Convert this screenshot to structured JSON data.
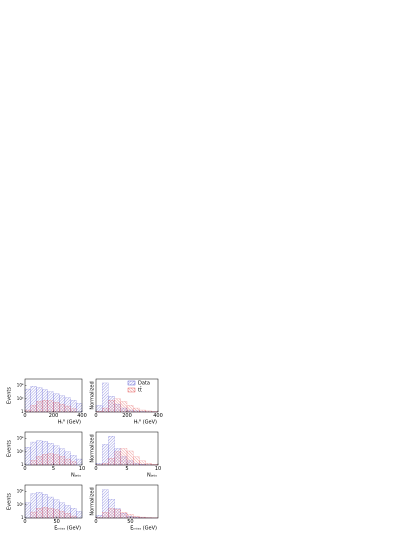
{
  "chart_data": [
    {
      "type": "histogram",
      "ylabel": "Events",
      "xlabel": "Hₜᴿ (GeV)",
      "log_y": true,
      "bins": [
        0,
        40,
        80,
        120,
        160,
        200,
        240,
        280,
        320,
        360,
        400
      ],
      "xlim": [
        0,
        400
      ],
      "xticks": [
        0,
        200,
        400
      ],
      "ylim": [
        1,
        100000
      ],
      "yticks": [
        1,
        {
          "value": 100,
          "label": "10²"
        },
        {
          "value": 10000,
          "label": "10⁴"
        }
      ],
      "series": [
        {
          "color": "#3a3ac8",
          "values": [
            3000,
            8000,
            5000,
            2500,
            1200,
            600,
            300,
            150,
            60,
            20
          ]
        },
        {
          "color": "#e03a3a",
          "values": [
            2,
            10,
            40,
            60,
            50,
            30,
            15,
            8,
            3,
            1
          ]
        }
      ]
    },
    {
      "type": "histogram",
      "ylabel": "Normalized",
      "xlabel": "Hₜᴿ (GeV)",
      "log_y": false,
      "legend": "upper right",
      "bins": [
        0,
        40,
        80,
        120,
        160,
        200,
        240,
        280,
        320,
        360,
        400
      ],
      "xlim": [
        0,
        400
      ],
      "xticks": [
        0,
        200,
        400
      ],
      "ylim": [
        0,
        0.25
      ],
      "series": [
        {
          "name": "Data",
          "color": "#3a3ac8",
          "values": [
            0.05,
            0.22,
            0.12,
            0.06,
            0.03,
            0.015,
            0.008,
            0.004,
            0.002,
            0.001
          ]
        },
        {
          "name": "tt̄",
          "color": "#e03a3a",
          "values": [
            0.005,
            0.03,
            0.09,
            0.1,
            0.08,
            0.05,
            0.03,
            0.015,
            0.008,
            0.004
          ]
        }
      ]
    },
    {
      "type": "histogram",
      "ylabel": "Events",
      "xlabel": "Nⱼₑₜₛ",
      "log_y": true,
      "bins": [
        0,
        1,
        2,
        3,
        4,
        5,
        6,
        7,
        8,
        9,
        10
      ],
      "xlim": [
        0,
        10
      ],
      "xticks": [
        0,
        5,
        10
      ],
      "ylim": [
        1,
        100000
      ],
      "yticks": [
        1,
        {
          "value": 100,
          "label": "10²"
        },
        {
          "value": 10000,
          "label": "10⁴"
        }
      ],
      "series": [
        {
          "color": "#3a3ac8",
          "values": [
            500,
            3000,
            5000,
            4000,
            2000,
            800,
            300,
            100,
            30,
            8
          ]
        },
        {
          "color": "#e03a3a",
          "values": [
            1,
            5,
            20,
            40,
            50,
            35,
            20,
            8,
            3,
            1
          ]
        }
      ]
    },
    {
      "type": "histogram",
      "ylabel": "Normalized",
      "xlabel": "Nⱼₑₜₛ",
      "log_y": false,
      "bins": [
        0,
        1,
        2,
        3,
        4,
        5,
        6,
        7,
        8,
        9,
        10
      ],
      "xlim": [
        0,
        10
      ],
      "xticks": [
        0,
        5,
        10
      ],
      "ylim": [
        0,
        0.4
      ],
      "series": [
        {
          "color": "#3a3ac8",
          "values": [
            0.02,
            0.25,
            0.35,
            0.2,
            0.1,
            0.05,
            0.02,
            0.008,
            0.003,
            0.001
          ]
        },
        {
          "color": "#e03a3a",
          "values": [
            0.002,
            0.02,
            0.08,
            0.16,
            0.2,
            0.17,
            0.1,
            0.05,
            0.02,
            0.008
          ]
        }
      ]
    },
    {
      "type": "histogram",
      "ylabel": "Events",
      "xlabel": "Eₘᵢₛₛ (GeV)",
      "log_y": true,
      "bins": [
        0,
        9,
        18,
        27,
        36,
        45,
        54,
        63,
        72,
        81,
        90
      ],
      "xlim": [
        0,
        90
      ],
      "xticks": [
        0,
        50
      ],
      "ylim": [
        1,
        100000
      ],
      "yticks": [
        1,
        {
          "value": 100,
          "label": "10²"
        },
        {
          "value": 10000,
          "label": "10⁴"
        }
      ],
      "series": [
        {
          "color": "#3a3ac8",
          "values": [
            200,
            5000,
            8000,
            4000,
            1500,
            600,
            200,
            80,
            30,
            10
          ]
        },
        {
          "color": "#e03a3a",
          "values": [
            1,
            8,
            30,
            40,
            30,
            18,
            10,
            5,
            2,
            1
          ]
        }
      ]
    },
    {
      "type": "histogram",
      "ylabel": "Normalized",
      "xlabel": "Eₘᵢₛₛ (GeV)",
      "log_y": false,
      "bins": [
        0,
        9,
        18,
        27,
        36,
        45,
        54,
        63,
        72,
        81,
        90
      ],
      "xlim": [
        0,
        90
      ],
      "xticks": [
        0,
        50
      ],
      "ylim": [
        0,
        0.35
      ],
      "series": [
        {
          "color": "#3a3ac8",
          "values": [
            0.03,
            0.3,
            0.2,
            0.1,
            0.05,
            0.02,
            0.01,
            0.005,
            0.002,
            0.001
          ]
        },
        {
          "color": "#e03a3a",
          "values": [
            0.005,
            0.06,
            0.1,
            0.09,
            0.06,
            0.04,
            0.02,
            0.01,
            0.005,
            0.002
          ]
        }
      ]
    }
  ]
}
